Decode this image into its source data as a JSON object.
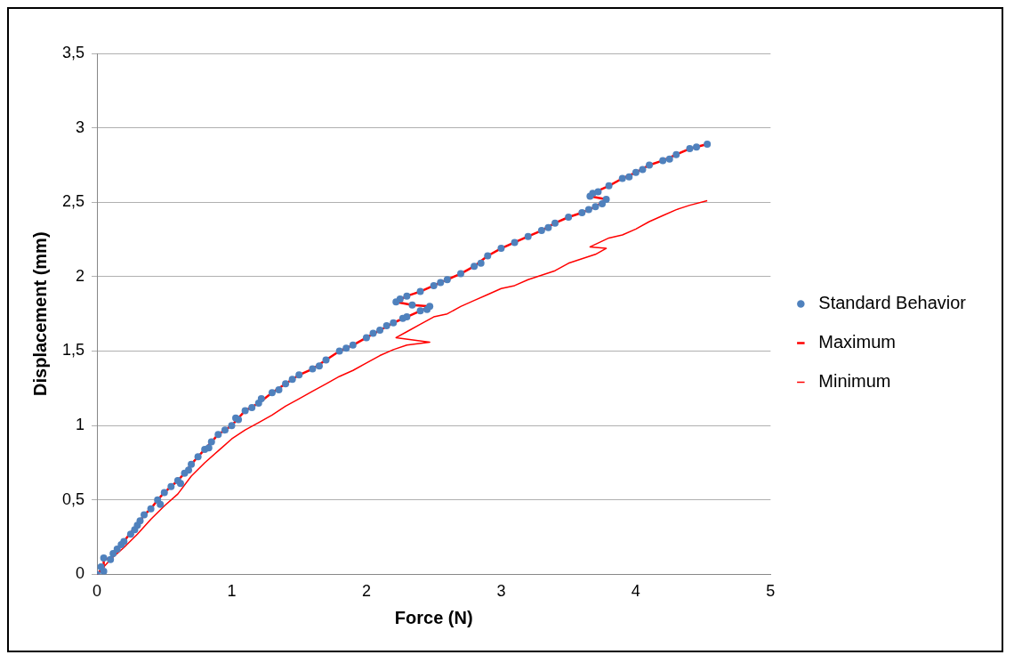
{
  "chart_data": {
    "type": "scatter",
    "xlabel": "Force (N)",
    "ylabel": "Displacement (mm)",
    "xlim": [
      0,
      5
    ],
    "ylim": [
      0,
      3.5
    ],
    "xticks": [
      0,
      1,
      2,
      3,
      4,
      5
    ],
    "yticks": [
      0,
      {
        "value": 0.5,
        "label": "0,5"
      },
      1,
      {
        "value": 1.5,
        "label": "1,5"
      },
      2,
      {
        "value": 2.5,
        "label": "2,5"
      },
      3,
      {
        "value": 3.5,
        "label": "3,5"
      }
    ],
    "grid": "y",
    "legend": "right",
    "series": [
      {
        "name": "Standard Behavior",
        "marker": "circle",
        "color": "#4f81bd",
        "x": [
          0,
          0.03,
          0.05,
          0.05,
          0.1,
          0.12,
          0.15,
          0.18,
          0.2,
          0.25,
          0.28,
          0.3,
          0.32,
          0.35,
          0.4,
          0.45,
          0.47,
          0.5,
          0.55,
          0.6,
          0.62,
          0.65,
          0.68,
          0.7,
          0.75,
          0.8,
          0.83,
          0.85,
          0.9,
          0.95,
          1.0,
          1.03,
          1.05,
          1.1,
          1.15,
          1.2,
          1.22,
          1.3,
          1.35,
          1.4,
          1.45,
          1.5,
          1.6,
          1.65,
          1.7,
          1.8,
          1.85,
          1.9,
          2.0,
          2.05,
          2.1,
          2.15,
          2.2,
          2.27,
          2.3,
          2.4,
          2.45,
          2.47,
          2.34,
          2.22,
          2.25,
          2.3,
          2.4,
          2.5,
          2.55,
          2.6,
          2.7,
          2.8,
          2.85,
          2.9,
          3.0,
          3.1,
          3.2,
          3.3,
          3.35,
          3.4,
          3.5,
          3.6,
          3.65,
          3.7,
          3.75,
          3.78,
          3.66,
          3.68,
          3.72,
          3.8,
          3.9,
          3.95,
          4.0,
          4.05,
          4.1,
          4.2,
          4.25,
          4.3,
          4.4,
          4.45,
          4.53
        ],
        "values": [
          0,
          0.05,
          0.02,
          0.11,
          0.1,
          0.14,
          0.17,
          0.2,
          0.22,
          0.27,
          0.3,
          0.33,
          0.36,
          0.4,
          0.44,
          0.5,
          0.47,
          0.55,
          0.59,
          0.63,
          0.61,
          0.68,
          0.7,
          0.74,
          0.79,
          0.84,
          0.85,
          0.89,
          0.94,
          0.97,
          1.0,
          1.05,
          1.04,
          1.1,
          1.12,
          1.15,
          1.18,
          1.22,
          1.24,
          1.28,
          1.31,
          1.34,
          1.38,
          1.4,
          1.44,
          1.5,
          1.52,
          1.54,
          1.59,
          1.62,
          1.64,
          1.67,
          1.69,
          1.72,
          1.73,
          1.77,
          1.78,
          1.8,
          1.81,
          1.83,
          1.85,
          1.87,
          1.9,
          1.94,
          1.96,
          1.98,
          2.02,
          2.07,
          2.09,
          2.14,
          2.19,
          2.23,
          2.27,
          2.31,
          2.33,
          2.36,
          2.4,
          2.43,
          2.45,
          2.47,
          2.49,
          2.52,
          2.54,
          2.56,
          2.57,
          2.61,
          2.66,
          2.67,
          2.7,
          2.72,
          2.75,
          2.78,
          2.79,
          2.82,
          2.86,
          2.87,
          2.89
        ]
      },
      {
        "name": "Maximum",
        "type": "line",
        "marker": "none",
        "color": "#ff0000",
        "line_style": "solid",
        "x": [
          0,
          0.05,
          0.05,
          0.1,
          0.15,
          0.2,
          0.25,
          0.3,
          0.35,
          0.4,
          0.45,
          0.5,
          0.55,
          0.6,
          0.65,
          0.7,
          0.75,
          0.8,
          0.85,
          0.9,
          1.0,
          1.05,
          1.1,
          1.2,
          1.3,
          1.4,
          1.5,
          1.6,
          1.7,
          1.8,
          1.9,
          2.0,
          2.1,
          2.2,
          2.3,
          2.4,
          2.47,
          2.34,
          2.22,
          2.3,
          2.4,
          2.5,
          2.6,
          2.7,
          2.8,
          2.9,
          3.0,
          3.1,
          3.2,
          3.3,
          3.4,
          3.5,
          3.6,
          3.7,
          3.78,
          3.66,
          3.7,
          3.8,
          3.9,
          4.0,
          4.1,
          4.2,
          4.3,
          4.4,
          4.53
        ],
        "values": [
          0,
          0.05,
          0.11,
          0.1,
          0.17,
          0.22,
          0.28,
          0.33,
          0.4,
          0.44,
          0.5,
          0.55,
          0.59,
          0.63,
          0.68,
          0.74,
          0.79,
          0.84,
          0.89,
          0.94,
          1.0,
          1.05,
          1.1,
          1.15,
          1.22,
          1.28,
          1.34,
          1.38,
          1.44,
          1.5,
          1.54,
          1.59,
          1.64,
          1.69,
          1.73,
          1.77,
          1.8,
          1.81,
          1.83,
          1.87,
          1.9,
          1.94,
          1.98,
          2.02,
          2.07,
          2.14,
          2.19,
          2.23,
          2.27,
          2.31,
          2.36,
          2.4,
          2.43,
          2.47,
          2.52,
          2.54,
          2.57,
          2.61,
          2.66,
          2.7,
          2.75,
          2.78,
          2.82,
          2.86,
          2.89
        ]
      },
      {
        "name": "Minimum",
        "type": "line",
        "marker": "none",
        "color": "#ff0000",
        "line_style": "solid",
        "x": [
          0,
          0.1,
          0.2,
          0.3,
          0.4,
          0.5,
          0.6,
          0.7,
          0.8,
          0.9,
          1.0,
          1.1,
          1.2,
          1.3,
          1.4,
          1.5,
          1.6,
          1.7,
          1.8,
          1.9,
          2.0,
          2.1,
          2.2,
          2.3,
          2.47,
          2.22,
          2.3,
          2.4,
          2.5,
          2.6,
          2.7,
          2.8,
          2.9,
          3.0,
          3.1,
          3.2,
          3.4,
          3.5,
          3.6,
          3.7,
          3.78,
          3.66,
          3.8,
          3.9,
          4.0,
          4.1,
          4.2,
          4.3,
          4.4,
          4.53
        ],
        "values": [
          0,
          0.1,
          0.18,
          0.27,
          0.37,
          0.46,
          0.54,
          0.66,
          0.75,
          0.83,
          0.91,
          0.97,
          1.02,
          1.07,
          1.13,
          1.18,
          1.23,
          1.28,
          1.33,
          1.37,
          1.42,
          1.47,
          1.51,
          1.54,
          1.56,
          1.59,
          1.63,
          1.68,
          1.73,
          1.75,
          1.8,
          1.84,
          1.88,
          1.92,
          1.94,
          1.98,
          2.04,
          2.09,
          2.12,
          2.15,
          2.19,
          2.2,
          2.26,
          2.28,
          2.32,
          2.37,
          2.41,
          2.45,
          2.48,
          2.51
        ]
      }
    ]
  }
}
